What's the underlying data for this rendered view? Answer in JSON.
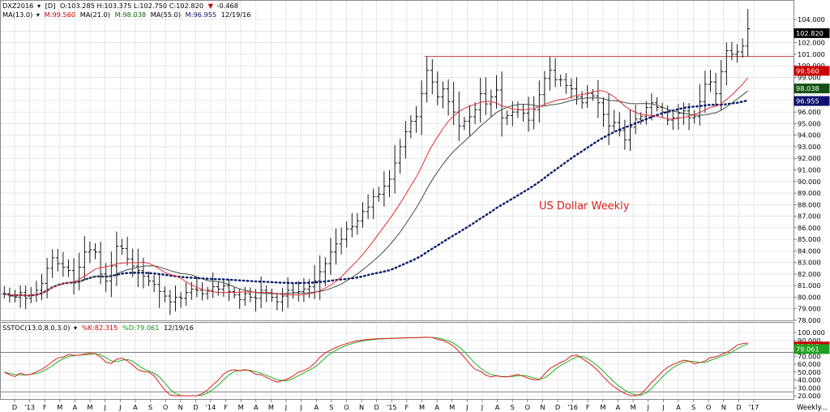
{
  "price_header": {
    "symbol": "DXZ2016",
    "symbol_arrow": "▾",
    "interval": "[D]",
    "ohlc": "O:103.285 H:103.375 L:102.750 C:102.820",
    "change": "-0.468",
    "ma_title": "MA(13.0)",
    "ma_title_arrow": "▾",
    "m1": "M:99.560",
    "ma2_title": "MA(21.0)",
    "m2": "M:98.038",
    "ma3_title": "MA(55.0)",
    "m3": "M:96.955",
    "ma_date": "12/19/16"
  },
  "stoch_header": {
    "title": "SSTOC(13.0,8.0,3.0)",
    "k": "%K:82.315",
    "d": "%D:79.061",
    "date": "12/19/16"
  },
  "annotation": "US Dollar Weekly",
  "bottom_right_label": "Weekly...",
  "colors": {
    "bar": "#000000",
    "ma13": "#e03030",
    "ma21": "#405040",
    "ma55": "#0a1a6a",
    "resistance": "#c04040",
    "stoch_k": "#e02020",
    "stoch_d": "#20b020",
    "annotation": "#e02020",
    "grid": "#d8d8d8",
    "box_last": "#000000",
    "box_ma13": "#cc0000",
    "box_ma21": "#145214",
    "box_ma55": "#101070",
    "box_k": "#cc0000",
    "box_d": "#20a020"
  },
  "price_badges": {
    "last": "102.820",
    "ma13": "99.560",
    "ma21": "98.038",
    "ma55": "96.955"
  },
  "stoch_badges": {
    "k": "82.315",
    "d": "79.061"
  },
  "chart_data": [
    {
      "type": "bar",
      "subtype": "ohlc",
      "ylim": [
        77.5,
        105
      ],
      "y_ticks": [
        "78.000",
        "79.000",
        "80.000",
        "81.000",
        "82.000",
        "83.000",
        "84.000",
        "85.000",
        "86.000",
        "87.000",
        "88.000",
        "89.000",
        "90.000",
        "91.000",
        "92.000",
        "93.000",
        "94.000",
        "95.000",
        "96.000",
        "97.000",
        "98.000",
        "99.000",
        "100.000",
        "101.000",
        "102.000",
        "103.000",
        "104.000"
      ],
      "x_ticks": [
        "D",
        "'13",
        "F",
        "M",
        "A",
        "M",
        "J",
        "J",
        "A",
        "S",
        "O",
        "N",
        "D",
        "'14",
        "F",
        "M",
        "A",
        "M",
        "J",
        "J",
        "A",
        "S",
        "O",
        "N",
        "D",
        "'15",
        "F",
        "M",
        "A",
        "M",
        "J",
        "J",
        "A",
        "S",
        "O",
        "N",
        "D",
        "'16",
        "F",
        "M",
        "A",
        "M",
        "J",
        "J",
        "A",
        "S",
        "O",
        "N",
        "D",
        "'17"
      ],
      "resistance_level": 100.8,
      "weekly_close": [
        80.3,
        80.1,
        80.0,
        80.4,
        79.9,
        80.2,
        80.6,
        81.2,
        82.5,
        83.4,
        82.9,
        82.6,
        82.3,
        81.3,
        82.6,
        83.9,
        84.1,
        83.9,
        82.0,
        81.4,
        82.7,
        84.4,
        84.2,
        83.3,
        82.7,
        82.3,
        81.8,
        81.4,
        81.1,
        80.5,
        80.1,
        79.6,
        80.0,
        79.9,
        80.4,
        80.7,
        80.6,
        80.3,
        80.6,
        80.9,
        80.7,
        81.0,
        80.5,
        80.2,
        79.8,
        80.3,
        80.0,
        79.9,
        80.6,
        80.4,
        80.0,
        79.6,
        80.1,
        80.6,
        80.4,
        80.5,
        80.7,
        80.9,
        81.4,
        82.2,
        82.9,
        83.9,
        84.6,
        85.0,
        85.9,
        86.1,
        86.6,
        87.4,
        87.8,
        88.7,
        88.9,
        89.6,
        90.2,
        91.6,
        93.0,
        94.3,
        95.2,
        95.6,
        97.6,
        99.6,
        98.6,
        97.3,
        98.0,
        96.9,
        96.0,
        94.8,
        95.2,
        95.6,
        96.2,
        97.6,
        96.7,
        97.3,
        97.9,
        95.5,
        95.7,
        96.0,
        96.2,
        95.9,
        95.3,
        96.2,
        97.5,
        98.9,
        99.6,
        98.8,
        98.8,
        98.3,
        98.0,
        97.3,
        96.8,
        97.6,
        97.4,
        96.8,
        95.8,
        94.8,
        95.1,
        94.4,
        93.6,
        94.7,
        95.4,
        95.6,
        96.4,
        96.8,
        96.4,
        96.0,
        95.3,
        95.5,
        95.9,
        96.1,
        95.5,
        95.6,
        96.9,
        98.4,
        98.6,
        97.6,
        99.5,
        101.3,
        101.0,
        101.2,
        101.7,
        103.2
      ],
      "ma13_last": 99.56,
      "ma21_last": 98.038,
      "ma55_last": 96.955,
      "last": 102.82
    },
    {
      "type": "line",
      "title": "SSTOC(13.0,8.0,3.0)",
      "ylim": [
        18,
        100
      ],
      "y_ticks": [
        "20.000",
        "30.000",
        "40.000",
        "50.000",
        "60.000",
        "70.000",
        "80.000",
        "90.000",
        "100.000"
      ],
      "levels": [
        75,
        25
      ],
      "k_last": 82.315,
      "d_last": 79.061
    }
  ]
}
